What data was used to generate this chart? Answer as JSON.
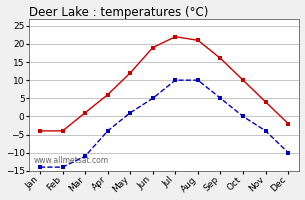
{
  "title": "Deer Lake : temperatures (°C)",
  "months": [
    "Jan",
    "Feb",
    "Mar",
    "Apr",
    "May",
    "Jun",
    "Jul",
    "Aug",
    "Sep",
    "Oct",
    "Nov",
    "Dec"
  ],
  "max_temps": [
    -4,
    -4,
    1,
    6,
    12,
    19,
    22,
    21,
    16,
    10,
    4,
    -2
  ],
  "min_temps": [
    -14,
    -14,
    -11,
    -4,
    1,
    5,
    10,
    10,
    5,
    0,
    -4,
    -10
  ],
  "max_color": "#cc0000",
  "min_color": "#0000bb",
  "ylim": [
    -15,
    27
  ],
  "yticks": [
    -15,
    -10,
    -5,
    0,
    5,
    10,
    15,
    20,
    25
  ],
  "bg_color": "#f0f0f0",
  "plot_bg_color": "#ffffff",
  "grid_color": "#bbbbbb",
  "watermark": "www.allmetsat.com",
  "title_fontsize": 8.5,
  "axis_fontsize": 6.5,
  "watermark_fontsize": 5.5,
  "line_width": 1.0,
  "marker_size": 2.5
}
